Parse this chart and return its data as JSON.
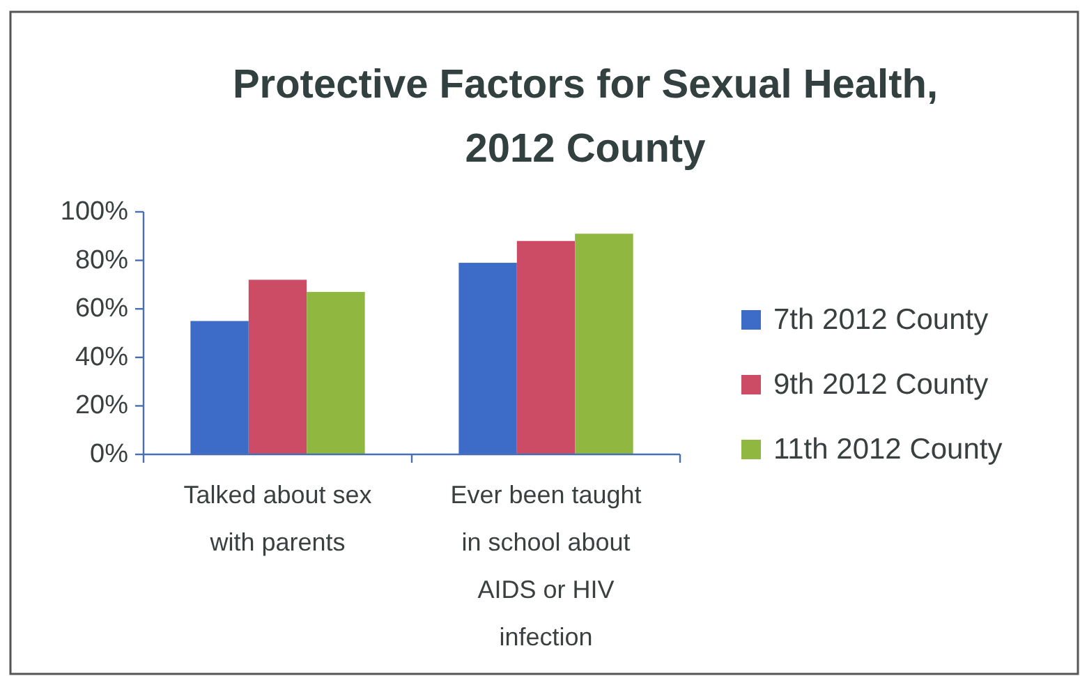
{
  "chart_data": {
    "type": "bar",
    "title": "Protective Factors for Sexual Health, 2012 County",
    "categories": [
      "Talked about sex with parents",
      "Ever been taught in school about AIDS or HIV infection"
    ],
    "series": [
      {
        "name": "7th 2012 County",
        "color": "#3c6cc8",
        "values": [
          55,
          79
        ]
      },
      {
        "name": "9th 2012 County",
        "color": "#cc4c66",
        "values": [
          72,
          88
        ]
      },
      {
        "name": "11th 2012 County",
        "color": "#90b840",
        "values": [
          67,
          91
        ]
      }
    ],
    "ylim": [
      0,
      100
    ],
    "yticks": [
      {
        "value": 0,
        "label": "0%"
      },
      {
        "value": 20,
        "label": "20%"
      },
      {
        "value": 40,
        "label": "40%"
      },
      {
        "value": 60,
        "label": "60%"
      },
      {
        "value": 80,
        "label": "80%"
      },
      {
        "value": 100,
        "label": "100%"
      }
    ],
    "legend": "right"
  }
}
